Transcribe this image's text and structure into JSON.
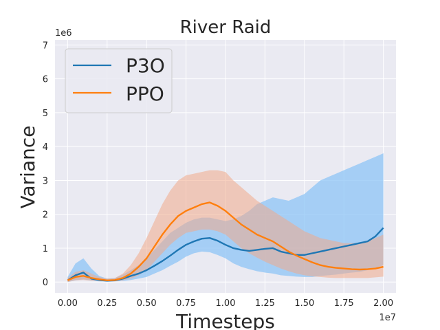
{
  "chart_data": {
    "type": "line",
    "title": "River Raid",
    "xlabel": "Timesteps",
    "ylabel": "Variance",
    "x_offset_label": "1e7",
    "y_offset_label": "1e6",
    "xlim": [
      -0.08,
      2.08
    ],
    "ylim": [
      -0.32,
      7.15
    ],
    "xticks": [
      0.0,
      0.25,
      0.5,
      0.75,
      1.0,
      1.25,
      1.5,
      1.75,
      2.0
    ],
    "xtick_labels": [
      "0.00",
      "0.25",
      "0.50",
      "0.75",
      "1.00",
      "1.25",
      "1.50",
      "1.75",
      "2.00"
    ],
    "yticks": [
      0,
      1,
      2,
      3,
      4,
      5,
      6,
      7
    ],
    "ytick_labels": [
      "0",
      "1",
      "2",
      "3",
      "4",
      "5",
      "6",
      "7"
    ],
    "grid": true,
    "legend_position": "top-left",
    "background": "#eaeaf2",
    "series": [
      {
        "name": "P3O",
        "color": "#1f77b4",
        "band_color": "#8ec4f5",
        "x": [
          0.0,
          0.05,
          0.1,
          0.15,
          0.2,
          0.25,
          0.3,
          0.35,
          0.4,
          0.45,
          0.5,
          0.55,
          0.6,
          0.65,
          0.7,
          0.75,
          0.8,
          0.85,
          0.9,
          0.95,
          1.0,
          1.05,
          1.1,
          1.15,
          1.2,
          1.25,
          1.3,
          1.35,
          1.4,
          1.45,
          1.5,
          1.55,
          1.6,
          1.65,
          1.7,
          1.75,
          1.8,
          1.85,
          1.9,
          1.95,
          2.0
        ],
        "mean": [
          0.05,
          0.2,
          0.28,
          0.1,
          0.06,
          0.04,
          0.05,
          0.1,
          0.18,
          0.25,
          0.35,
          0.48,
          0.62,
          0.78,
          0.95,
          1.1,
          1.2,
          1.28,
          1.3,
          1.22,
          1.1,
          1.0,
          0.95,
          0.92,
          0.95,
          0.98,
          1.0,
          0.9,
          0.85,
          0.8,
          0.8,
          0.85,
          0.9,
          0.95,
          1.0,
          1.05,
          1.1,
          1.15,
          1.2,
          1.35,
          1.6
        ],
        "lower": [
          0.0,
          0.05,
          0.08,
          0.04,
          0.02,
          0.01,
          0.02,
          0.03,
          0.06,
          0.1,
          0.15,
          0.25,
          0.35,
          0.48,
          0.6,
          0.75,
          0.85,
          0.9,
          0.88,
          0.8,
          0.7,
          0.55,
          0.45,
          0.38,
          0.32,
          0.28,
          0.25,
          0.2,
          0.18,
          0.16,
          0.15,
          0.15,
          0.18,
          0.2,
          0.22,
          0.25,
          0.28,
          0.3,
          0.35,
          0.4,
          0.5
        ],
        "upper": [
          0.15,
          0.55,
          0.7,
          0.4,
          0.18,
          0.1,
          0.12,
          0.22,
          0.35,
          0.5,
          0.7,
          0.95,
          1.2,
          1.45,
          1.6,
          1.75,
          1.85,
          1.9,
          1.9,
          1.85,
          1.8,
          1.85,
          1.95,
          2.1,
          2.3,
          2.4,
          2.5,
          2.45,
          2.4,
          2.5,
          2.6,
          2.8,
          3.0,
          3.1,
          3.2,
          3.3,
          3.4,
          3.5,
          3.6,
          3.7,
          3.8
        ]
      },
      {
        "name": "PPO",
        "color": "#ff7f0e",
        "band_color": "#f0a98a",
        "x": [
          0.0,
          0.05,
          0.1,
          0.15,
          0.2,
          0.25,
          0.3,
          0.35,
          0.4,
          0.45,
          0.5,
          0.55,
          0.6,
          0.65,
          0.7,
          0.75,
          0.8,
          0.85,
          0.9,
          0.95,
          1.0,
          1.05,
          1.1,
          1.15,
          1.2,
          1.25,
          1.3,
          1.35,
          1.4,
          1.45,
          1.5,
          1.55,
          1.6,
          1.65,
          1.7,
          1.75,
          1.8,
          1.85,
          1.9,
          1.95,
          2.0
        ],
        "mean": [
          0.05,
          0.15,
          0.18,
          0.12,
          0.08,
          0.05,
          0.06,
          0.12,
          0.25,
          0.45,
          0.7,
          1.05,
          1.4,
          1.7,
          1.95,
          2.1,
          2.2,
          2.3,
          2.35,
          2.25,
          2.1,
          1.9,
          1.7,
          1.55,
          1.4,
          1.3,
          1.2,
          1.05,
          0.9,
          0.78,
          0.68,
          0.58,
          0.5,
          0.45,
          0.42,
          0.4,
          0.38,
          0.37,
          0.38,
          0.4,
          0.45
        ],
        "lower": [
          0.0,
          0.05,
          0.06,
          0.04,
          0.03,
          0.02,
          0.02,
          0.05,
          0.1,
          0.2,
          0.35,
          0.6,
          0.85,
          1.1,
          1.3,
          1.45,
          1.5,
          1.55,
          1.55,
          1.5,
          1.4,
          1.2,
          1.0,
          0.85,
          0.72,
          0.6,
          0.5,
          0.4,
          0.32,
          0.25,
          0.2,
          0.17,
          0.15,
          0.13,
          0.12,
          0.12,
          0.12,
          0.12,
          0.12,
          0.14,
          0.16
        ],
        "upper": [
          0.12,
          0.3,
          0.35,
          0.25,
          0.15,
          0.1,
          0.12,
          0.25,
          0.5,
          0.85,
          1.3,
          1.8,
          2.3,
          2.7,
          3.0,
          3.15,
          3.2,
          3.25,
          3.3,
          3.3,
          3.25,
          3.0,
          2.8,
          2.6,
          2.4,
          2.25,
          2.1,
          1.95,
          1.8,
          1.65,
          1.5,
          1.4,
          1.3,
          1.25,
          1.2,
          1.15,
          1.15,
          1.15,
          1.2,
          1.3,
          1.4
        ]
      }
    ]
  }
}
